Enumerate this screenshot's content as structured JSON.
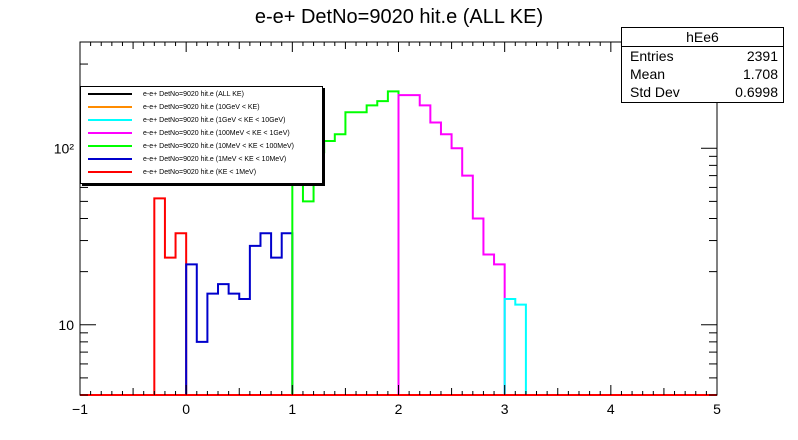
{
  "chart_data": {
    "type": "histogram",
    "title": "e-e+ DetNo=9020 hit.e (ALL KE)",
    "xlim": [
      -1,
      5
    ],
    "ylim": [
      4,
      400
    ],
    "log_y": true,
    "x_ticks": [
      "−1",
      "0",
      "1",
      "2",
      "3",
      "4",
      "5"
    ],
    "y_tick_labels": [
      {
        "value": 10,
        "label": "10"
      },
      {
        "value": 100,
        "label": "10²"
      }
    ],
    "bin_width": 0.1,
    "series": [
      {
        "name": "e-e+ DetNo=9020 hit.e (KE < 1MeV)",
        "color": "#ff0000",
        "bins": [
          [
            -0.3,
            52
          ],
          [
            -0.2,
            24
          ],
          [
            -0.1,
            33
          ]
        ]
      },
      {
        "name": "e-e+ DetNo=9020 hit.e (1MeV < KE < 10MeV)",
        "color": "#0000cc",
        "bins": [
          [
            0.0,
            22
          ],
          [
            0.1,
            8
          ],
          [
            0.2,
            15
          ],
          [
            0.3,
            17
          ],
          [
            0.4,
            15
          ],
          [
            0.5,
            14
          ],
          [
            0.6,
            28
          ],
          [
            0.7,
            33
          ],
          [
            0.8,
            24
          ],
          [
            0.9,
            33
          ]
        ]
      },
      {
        "name": "e-e+ DetNo=9020 hit.e (10MeV < KE < 100MeV)",
        "color": "#00ff00",
        "bins": [
          [
            1.0,
            75
          ],
          [
            1.1,
            50
          ],
          [
            1.2,
            95
          ],
          [
            1.3,
            110
          ],
          [
            1.4,
            120
          ],
          [
            1.5,
            160
          ],
          [
            1.6,
            160
          ],
          [
            1.7,
            175
          ],
          [
            1.8,
            185
          ],
          [
            1.9,
            210
          ]
        ]
      },
      {
        "name": "e-e+ DetNo=9020 hit.e (100MeV < KE < 1GeV)",
        "color": "#ff00ff",
        "bins": [
          [
            2.0,
            200
          ],
          [
            2.1,
            200
          ],
          [
            2.2,
            175
          ],
          [
            2.3,
            140
          ],
          [
            2.4,
            120
          ],
          [
            2.5,
            100
          ],
          [
            2.6,
            70
          ],
          [
            2.7,
            40
          ],
          [
            2.8,
            25
          ],
          [
            2.9,
            22
          ]
        ]
      },
      {
        "name": "e-e+ DetNo=9020 hit.e (1GeV < KE < 10GeV)",
        "color": "#00ffff",
        "bins": [
          [
            3.0,
            14
          ],
          [
            3.1,
            13
          ]
        ]
      },
      {
        "name": "e-e+ DetNo=9020 hit.e (10GeV < KE)",
        "color": "#ff8c00",
        "bins": []
      },
      {
        "name": "e-e+ DetNo=9020 hit.e (ALL KE)",
        "color": "#000000",
        "bins": []
      }
    ]
  },
  "stats": {
    "name": "hEe6",
    "rows": [
      {
        "label": "Entries",
        "value": "2391"
      },
      {
        "label": "Mean",
        "value": "1.708"
      },
      {
        "label": "Std Dev",
        "value": "0.6998"
      }
    ]
  },
  "legend": [
    {
      "label": "e-e+ DetNo=9020 hit.e (ALL KE)",
      "color": "#000000"
    },
    {
      "label": "e-e+ DetNo=9020 hit.e (10GeV < KE)",
      "color": "#ff8c00"
    },
    {
      "label": "e-e+ DetNo=9020 hit.e (1GeV < KE < 10GeV)",
      "color": "#00ffff"
    },
    {
      "label": "e-e+ DetNo=9020 hit.e (100MeV < KE < 1GeV)",
      "color": "#ff00ff"
    },
    {
      "label": "e-e+ DetNo=9020 hit.e (10MeV < KE < 100MeV)",
      "color": "#00ff00"
    },
    {
      "label": "e-e+ DetNo=9020 hit.e (1MeV < KE < 10MeV)",
      "color": "#0000cc"
    },
    {
      "label": "e-e+ DetNo=9020 hit.e (KE < 1MeV)",
      "color": "#ff0000"
    }
  ]
}
